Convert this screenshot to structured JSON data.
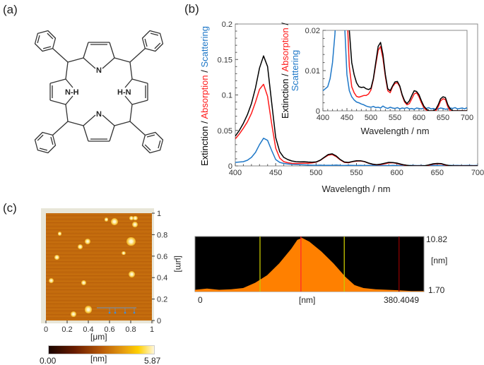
{
  "panels": {
    "a": "(a)",
    "b": "(b)",
    "c": "(c)"
  },
  "molecule": {
    "atom_labels": [
      "N",
      "N-H",
      "H-N",
      "N"
    ]
  },
  "colors": {
    "extinction": "#000000",
    "absorption": "#ff1a1a",
    "scattering": "#1f78c8",
    "profile_fill": "#ff8000",
    "cursor_yellow": "#c8c800",
    "cursor_red": "#ff2a2a",
    "cursor_darkred": "#8b0000"
  },
  "chart_data": [
    {
      "type": "line",
      "title": "",
      "xlabel": "Wavelength / nm",
      "ylabel_parts": [
        {
          "text": "Extinction / ",
          "color": "#000000"
        },
        {
          "text": "Absorption",
          "color": "#ff1a1a"
        },
        {
          "text": " / ",
          "color": "#000000"
        },
        {
          "text": "Scattering",
          "color": "#1f78c8"
        }
      ],
      "xlim": [
        400,
        700
      ],
      "ylim": [
        0,
        0.2
      ],
      "xticks": [
        "400",
        "450",
        "500",
        "550",
        "600",
        "650",
        "700"
      ],
      "yticks": [
        "0",
        "0.05",
        "0.1",
        "0.15",
        "0.2"
      ],
      "grid": false,
      "x": [
        400,
        405,
        410,
        415,
        420,
        425,
        430,
        435,
        440,
        445,
        450,
        455,
        460,
        465,
        470,
        475,
        480,
        485,
        490,
        495,
        500,
        505,
        510,
        515,
        520,
        525,
        530,
        535,
        540,
        545,
        550,
        555,
        560,
        565,
        570,
        575,
        580,
        585,
        590,
        595,
        600,
        605,
        610,
        615,
        620,
        625,
        630,
        635,
        640,
        645,
        650,
        655,
        660,
        665,
        670,
        675,
        680,
        685,
        690,
        695,
        700
      ],
      "series": [
        {
          "key": "extinction",
          "values": [
            0.042,
            0.05,
            0.06,
            0.072,
            0.088,
            0.11,
            0.138,
            0.155,
            0.14,
            0.09,
            0.04,
            0.02,
            0.012,
            0.009,
            0.007,
            0.006,
            0.0058,
            0.0059,
            0.0055,
            0.0053,
            0.0056,
            0.008,
            0.012,
            0.016,
            0.017,
            0.014,
            0.009,
            0.0055,
            0.005,
            0.0062,
            0.0072,
            0.0073,
            0.0062,
            0.004,
            0.0025,
            0.0018,
            0.0025,
            0.0038,
            0.005,
            0.0048,
            0.004,
            0.0025,
            0.0012,
            0.0005,
            0,
            0,
            0,
            0.0004,
            0.0015,
            0.003,
            0.0035,
            0.0033,
            0.0015,
            0.0005,
            0,
            0,
            0,
            0,
            0,
            0,
            0
          ]
        },
        {
          "key": "absorption",
          "values": [
            0.038,
            0.045,
            0.053,
            0.062,
            0.074,
            0.09,
            0.108,
            0.115,
            0.098,
            0.06,
            0.025,
            0.011,
            0.006,
            0.0045,
            0.0036,
            0.0034,
            0.0036,
            0.0038,
            0.0038,
            0.0042,
            0.0052,
            0.0078,
            0.0115,
            0.015,
            0.016,
            0.013,
            0.0085,
            0.005,
            0.0045,
            0.006,
            0.0068,
            0.007,
            0.006,
            0.0038,
            0.0022,
            0.0015,
            0.0018,
            0.003,
            0.0042,
            0.0045,
            0.0035,
            0.002,
            0.0008,
            0.0002,
            0,
            0,
            0,
            0,
            0.001,
            0.0025,
            0.003,
            0.0028,
            0.001,
            0,
            0,
            0,
            0,
            0,
            0,
            0,
            0
          ]
        },
        {
          "key": "scattering",
          "values": [
            0.005,
            0.0055,
            0.006,
            0.008,
            0.012,
            0.019,
            0.03,
            0.039,
            0.036,
            0.022,
            0.009,
            0.005,
            0.0035,
            0.0027,
            0.0022,
            0.002,
            0.0017,
            0.0015,
            0.0012,
            0.001,
            0.0009,
            0.0011,
            0.0008,
            0.0009,
            0.0007,
            0.0012,
            0.0008,
            0.0006,
            0.0009,
            0.0007,
            0.0006,
            0.0008,
            0.0005,
            0.0007,
            0.0006,
            0.0008,
            0.0005,
            0.0006,
            0.0004,
            0.0007,
            0.0006,
            0.0005,
            0.0007,
            0.0006,
            0.0008,
            0.0005,
            0.0006,
            0.0004,
            0.0005,
            0.0007,
            0.0006,
            0.0004,
            0.0005,
            0.0007,
            0.0006,
            0.0008,
            0.0005,
            0.0006,
            0.0007,
            0.0005,
            0.0008
          ]
        }
      ]
    },
    {
      "type": "line",
      "title": "",
      "inset": true,
      "xlabel": "Wavelength / nm",
      "ylabel_line1": [
        {
          "text": "Extinction / ",
          "color": "#000000"
        },
        {
          "text": "Absorption",
          "color": "#ff1a1a"
        },
        {
          "text": " /",
          "color": "#000000"
        }
      ],
      "ylabel_line2": [
        {
          "text": "Scattering",
          "color": "#1f78c8"
        }
      ],
      "xlim": [
        400,
        700
      ],
      "ylim": [
        0,
        0.02
      ],
      "xticks": [
        "400",
        "450",
        "500",
        "550",
        "600",
        "650",
        "700"
      ],
      "yticks": [
        "0",
        "0.01",
        "0.02"
      ],
      "grid": false
    },
    {
      "type": "area",
      "title": "",
      "xlabel": "[nm]",
      "ylabel": "[nm]",
      "xlim": [
        0,
        380.4049
      ],
      "ylim": [
        1.7,
        10.82
      ],
      "x_label_left": "0",
      "x_label_right": "380.4049",
      "y_label_top": "10.82",
      "y_label_bottom": "1.70",
      "x": [
        0,
        20,
        40,
        60,
        80,
        100,
        120,
        140,
        160,
        170,
        178,
        190,
        210,
        230,
        250,
        265,
        280,
        300,
        320,
        340,
        360,
        380.4
      ],
      "values": [
        2.0,
        2.2,
        2.0,
        2.1,
        2.3,
        3.2,
        4.5,
        6.5,
        9.0,
        10.5,
        10.82,
        10.2,
        8.5,
        6.5,
        4.2,
        2.8,
        2.3,
        2.1,
        2.0,
        1.9,
        1.8,
        1.8
      ],
      "cursors_nm": [
        {
          "x": 108,
          "color": "yellow"
        },
        {
          "x": 176,
          "color": "red"
        },
        {
          "x": 248,
          "color": "yellow"
        },
        {
          "x": 339,
          "color": "darkred"
        }
      ]
    }
  ],
  "afm": {
    "x_ticks": [
      "0",
      "0.2",
      "0.4",
      "0.6",
      "0.8",
      "1"
    ],
    "y_ticks": [
      "0",
      "0.2",
      "0.4",
      "0.6",
      "0.8",
      "1"
    ],
    "x_unit": "[μm]",
    "y_unit": "[μm]",
    "colorbar": {
      "min": "0.00",
      "max": "5.87",
      "unit": "[nm]"
    }
  }
}
